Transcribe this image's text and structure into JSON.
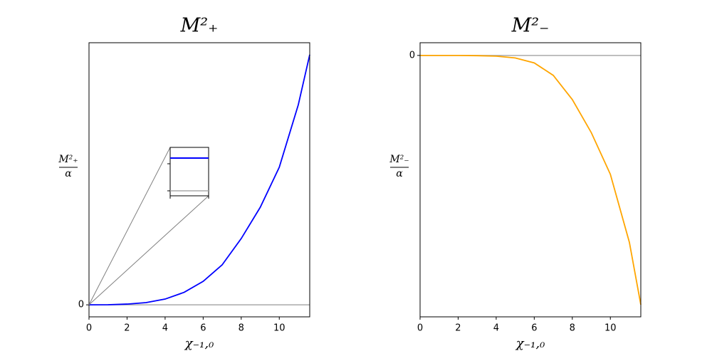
{
  "chart_data": [
    {
      "type": "line",
      "title": "M²₊",
      "xlabel": "χ₋₁,₀",
      "ylabel": {
        "numerator": "M²₊",
        "denominator": "α"
      },
      "x": [
        0,
        1,
        2,
        3,
        4,
        5,
        6,
        7,
        8,
        9,
        10,
        11,
        11.6
      ],
      "values": [
        0,
        0.0005,
        0.003,
        0.009,
        0.023,
        0.05,
        0.094,
        0.16,
        0.265,
        0.39,
        0.55,
        0.8,
        1.0
      ],
      "color": "#0000ff",
      "xlim": [
        0,
        11.6
      ],
      "xticks": [
        0,
        2,
        4,
        6,
        8,
        10
      ],
      "ylim": [
        -0.048,
        1.048
      ],
      "yticks": [
        0
      ],
      "hline": {
        "y": 0,
        "color": "#aaaaaa"
      }
    },
    {
      "type": "line",
      "title": "M²₋",
      "xlabel": "χ₋₁,₀",
      "ylabel": {
        "numerator": "M²₋",
        "denominator": "α"
      },
      "x": [
        0,
        1,
        2,
        3,
        4,
        5,
        6,
        7,
        8,
        9,
        10,
        11,
        11.6
      ],
      "values": [
        0,
        0,
        0,
        -0.001,
        -0.003,
        -0.01,
        -0.03,
        -0.08,
        -0.177,
        -0.31,
        -0.477,
        -0.75,
        -1.0
      ],
      "color": "#ffa500",
      "xlim": [
        0,
        11.6
      ],
      "xticks": [
        0,
        2,
        4,
        6,
        8,
        10
      ],
      "ylim": [
        -1.049,
        0.051
      ],
      "yticks": [
        0
      ],
      "hline": {
        "y": 0,
        "color": "#aaaaaa"
      }
    }
  ]
}
